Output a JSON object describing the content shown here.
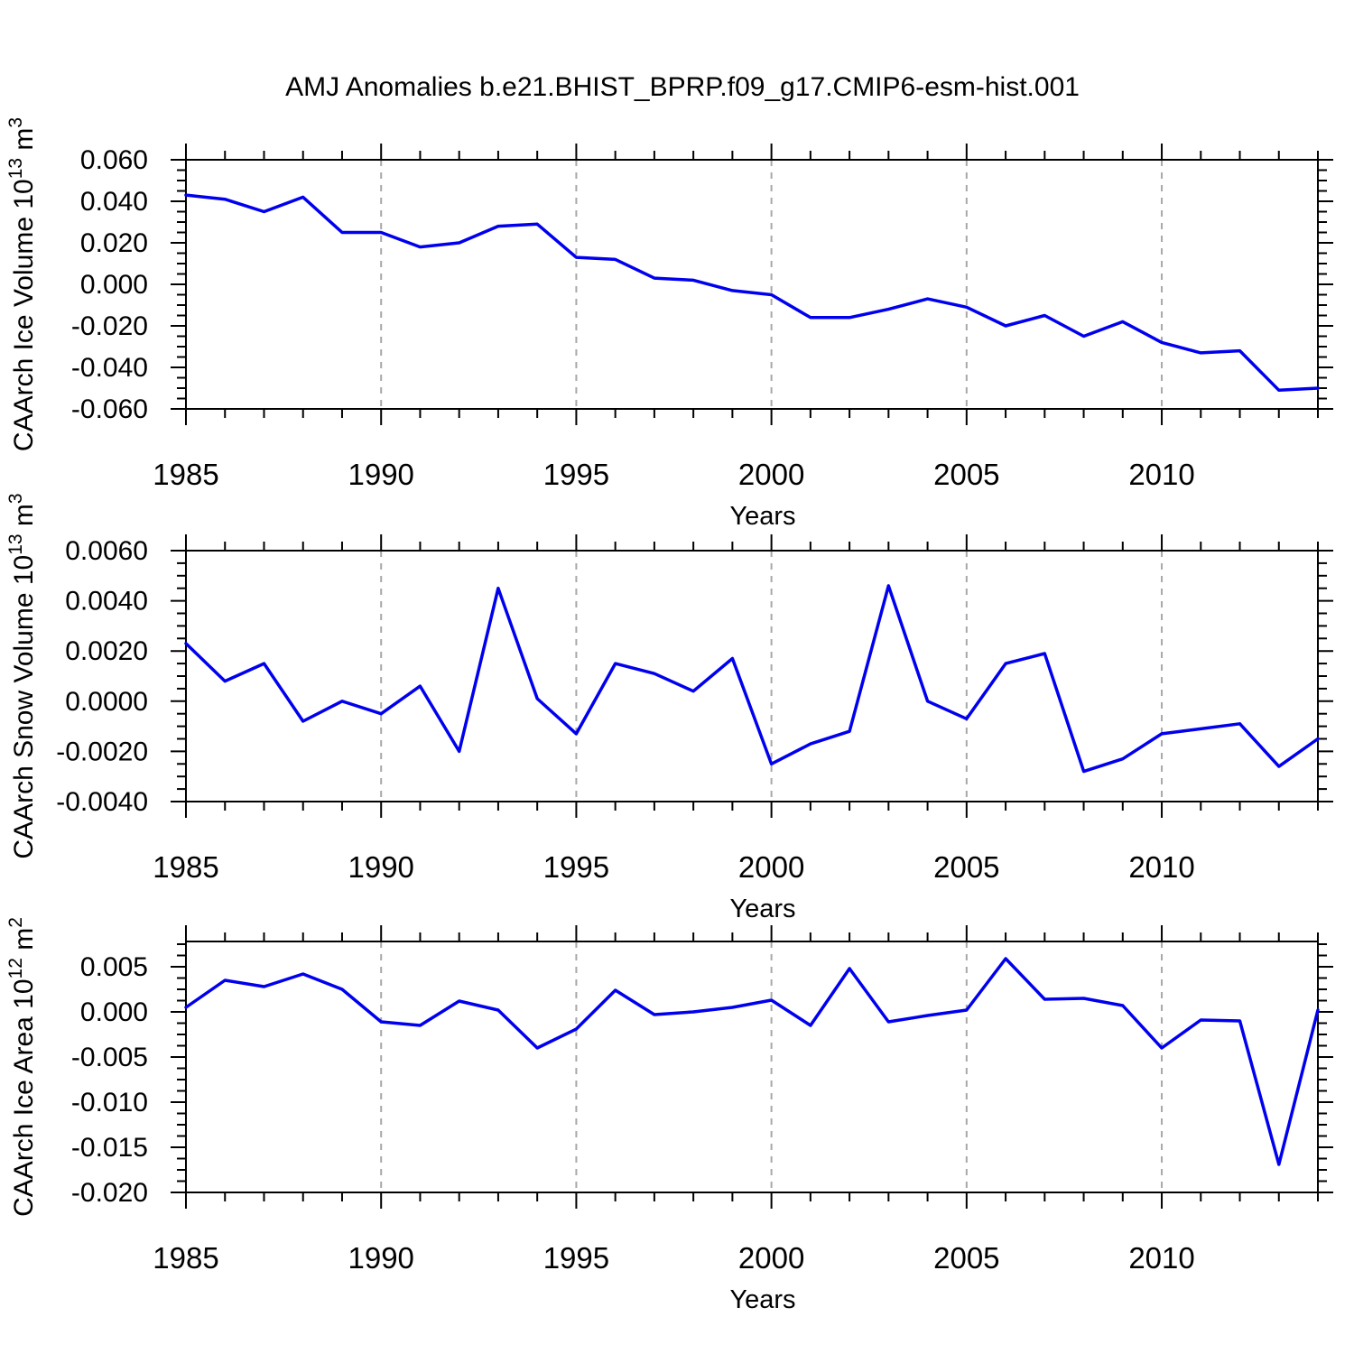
{
  "title": "AMJ Anomalies b.e21.BHIST_BPRP.f09_g17.CMIP6-esm-hist.001",
  "style": {
    "line_color": "#0000ee",
    "grid_color": "#a8a8a8",
    "axis_color": "#000000",
    "text_color": "#000000",
    "background": "#ffffff"
  },
  "chart_data": [
    {
      "type": "line",
      "id": "ice-volume",
      "ylabel_segments": [
        [
          "CAArch Ice Volume 10",
          0
        ],
        [
          "13",
          1
        ],
        " m3-sup-follows",
        [
          " m",
          0
        ],
        [
          "3",
          1
        ]
      ],
      "xlabel": "Years",
      "x_tick_labels": [
        "1985",
        "1990",
        "1995",
        "2000",
        "2005",
        "2010"
      ],
      "x_major_years": [
        1985,
        1990,
        1995,
        2000,
        2005,
        2010
      ],
      "grid_years": [
        1990,
        1995,
        2000,
        2005,
        2010
      ],
      "x": [
        1985,
        1986,
        1987,
        1988,
        1989,
        1990,
        1991,
        1992,
        1993,
        1994,
        1995,
        1996,
        1997,
        1998,
        1999,
        2000,
        2001,
        2002,
        2003,
        2004,
        2005,
        2006,
        2007,
        2008,
        2009,
        2010,
        2011,
        2012,
        2013,
        2014
      ],
      "values": [
        0.043,
        0.041,
        0.035,
        0.042,
        0.025,
        0.025,
        0.018,
        0.02,
        0.028,
        0.029,
        0.013,
        0.012,
        0.003,
        0.002,
        -0.003,
        -0.005,
        -0.016,
        -0.016,
        -0.012,
        -0.007,
        -0.011,
        -0.02,
        -0.015,
        -0.025,
        -0.018,
        -0.028,
        -0.033,
        -0.032,
        -0.051,
        -0.05
      ],
      "ylim": [
        -0.06,
        0.06
      ],
      "y_top": 0.06,
      "y_bottom": -0.06,
      "y_major": [
        0.06,
        0.04,
        0.02,
        0.0,
        -0.02,
        -0.04,
        -0.06
      ],
      "y_major_labels": [
        "0.060",
        "0.040",
        "0.020",
        "0.000",
        "-0.020",
        "-0.040",
        "-0.060"
      ],
      "y_minor_step": 0.005,
      "grid": "vertical-dashed",
      "legend": null
    },
    {
      "type": "line",
      "id": "snow-volume",
      "ylabel_segments": [
        [
          "CAArch Snow Volume 10",
          0
        ],
        [
          "13",
          1
        ],
        [
          " m",
          0
        ],
        [
          "3",
          1
        ]
      ],
      "xlabel": "Years",
      "x_tick_labels": [
        "1985",
        "1990",
        "1995",
        "2000",
        "2005",
        "2010"
      ],
      "x_major_years": [
        1985,
        1990,
        1995,
        2000,
        2005,
        2010
      ],
      "grid_years": [
        1990,
        1995,
        2000,
        2005,
        2010
      ],
      "x": [
        1985,
        1986,
        1987,
        1988,
        1989,
        1990,
        1991,
        1992,
        1993,
        1994,
        1995,
        1996,
        1997,
        1998,
        1999,
        2000,
        2001,
        2002,
        2003,
        2004,
        2005,
        2006,
        2007,
        2008,
        2009,
        2010,
        2011,
        2012,
        2013,
        2014
      ],
      "values": [
        0.0023,
        0.0008,
        0.0015,
        -0.0008,
        0.0,
        -0.0005,
        0.0006,
        -0.002,
        0.0045,
        0.0001,
        -0.0013,
        0.0015,
        0.0011,
        0.0004,
        0.0017,
        -0.0025,
        -0.0017,
        -0.0012,
        0.0046,
        0.0,
        -0.0007,
        0.0015,
        0.0019,
        -0.0028,
        -0.0023,
        -0.0013,
        -0.0011,
        -0.0009,
        -0.0026,
        -0.0015
      ],
      "ylim": [
        -0.004,
        0.006
      ],
      "y_top": 0.006,
      "y_bottom": -0.004,
      "y_major": [
        0.006,
        0.004,
        0.002,
        0.0,
        -0.002,
        -0.004
      ],
      "y_major_labels": [
        "0.0060",
        "0.0040",
        "0.0020",
        "0.0000",
        "-0.0020",
        "-0.0040"
      ],
      "y_minor_step": 0.0005,
      "grid": "vertical-dashed",
      "legend": null
    },
    {
      "type": "line",
      "id": "ice-area",
      "ylabel_segments": [
        [
          "CAArch Ice Area 10",
          0
        ],
        [
          "12",
          1
        ],
        [
          " m",
          0
        ],
        [
          "2",
          1
        ]
      ],
      "xlabel": "Years",
      "x_tick_labels": [
        "1985",
        "1990",
        "1995",
        "2000",
        "2005",
        "2010"
      ],
      "x_major_years": [
        1985,
        1990,
        1995,
        2000,
        2005,
        2010
      ],
      "grid_years": [
        1990,
        1995,
        2000,
        2005,
        2010
      ],
      "x": [
        1985,
        1986,
        1987,
        1988,
        1989,
        1990,
        1991,
        1992,
        1993,
        1994,
        1995,
        1996,
        1997,
        1998,
        1999,
        2000,
        2001,
        2002,
        2003,
        2004,
        2005,
        2006,
        2007,
        2008,
        2009,
        2010,
        2011,
        2012,
        2013,
        2014
      ],
      "values": [
        0.0005,
        0.0035,
        0.0028,
        0.0042,
        0.0025,
        -0.0011,
        -0.0015,
        0.0012,
        0.0002,
        -0.004,
        -0.0019,
        0.0024,
        -0.0003,
        0.0,
        0.0005,
        0.0013,
        -0.0015,
        0.0048,
        -0.0011,
        -0.0004,
        0.0002,
        0.0059,
        0.0014,
        0.0015,
        0.0007,
        -0.004,
        -0.0009,
        -0.001,
        -0.0169,
        0.0002
      ],
      "ylim": [
        -0.02,
        0.0078
      ],
      "y_top": 0.0078,
      "y_bottom": -0.02,
      "y_major": [
        0.005,
        0.0,
        -0.005,
        -0.01,
        -0.015,
        -0.02
      ],
      "y_major_labels": [
        "0.005",
        "0.000",
        "-0.005",
        "-0.010",
        "-0.015",
        "-0.020"
      ],
      "y_minor_step": 0.00125,
      "grid": "vertical-dashed",
      "legend": null
    }
  ]
}
